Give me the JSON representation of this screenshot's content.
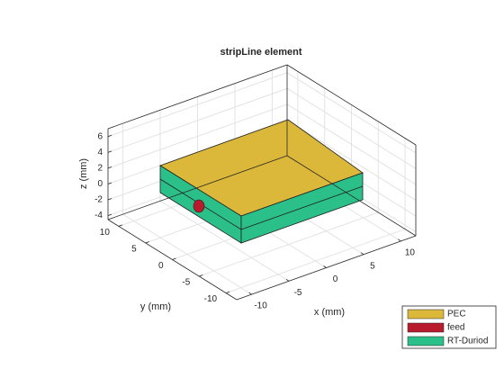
{
  "chart_data": {
    "type": "box3d",
    "title": "stripLine element",
    "xlabel": "x (mm)",
    "ylabel": "y (mm)",
    "zlabel": "z (mm)",
    "xlim": [
      -12,
      12
    ],
    "ylim": [
      -12,
      12
    ],
    "zlim": [
      -4.5,
      7
    ],
    "xticks": [
      -10,
      -5,
      0,
      5,
      10
    ],
    "yticks": [
      -10,
      -5,
      0,
      5,
      10
    ],
    "zticks": [
      -4,
      -2,
      0,
      2,
      4,
      6
    ],
    "grid": true,
    "legend_position": "southeast",
    "series": [
      {
        "name": "PEC",
        "color": "#dcb83a"
      },
      {
        "name": "feed",
        "color": "#b81b2c"
      },
      {
        "name": "RT-Duriod",
        "color": "#2bbf8a"
      }
    ]
  }
}
